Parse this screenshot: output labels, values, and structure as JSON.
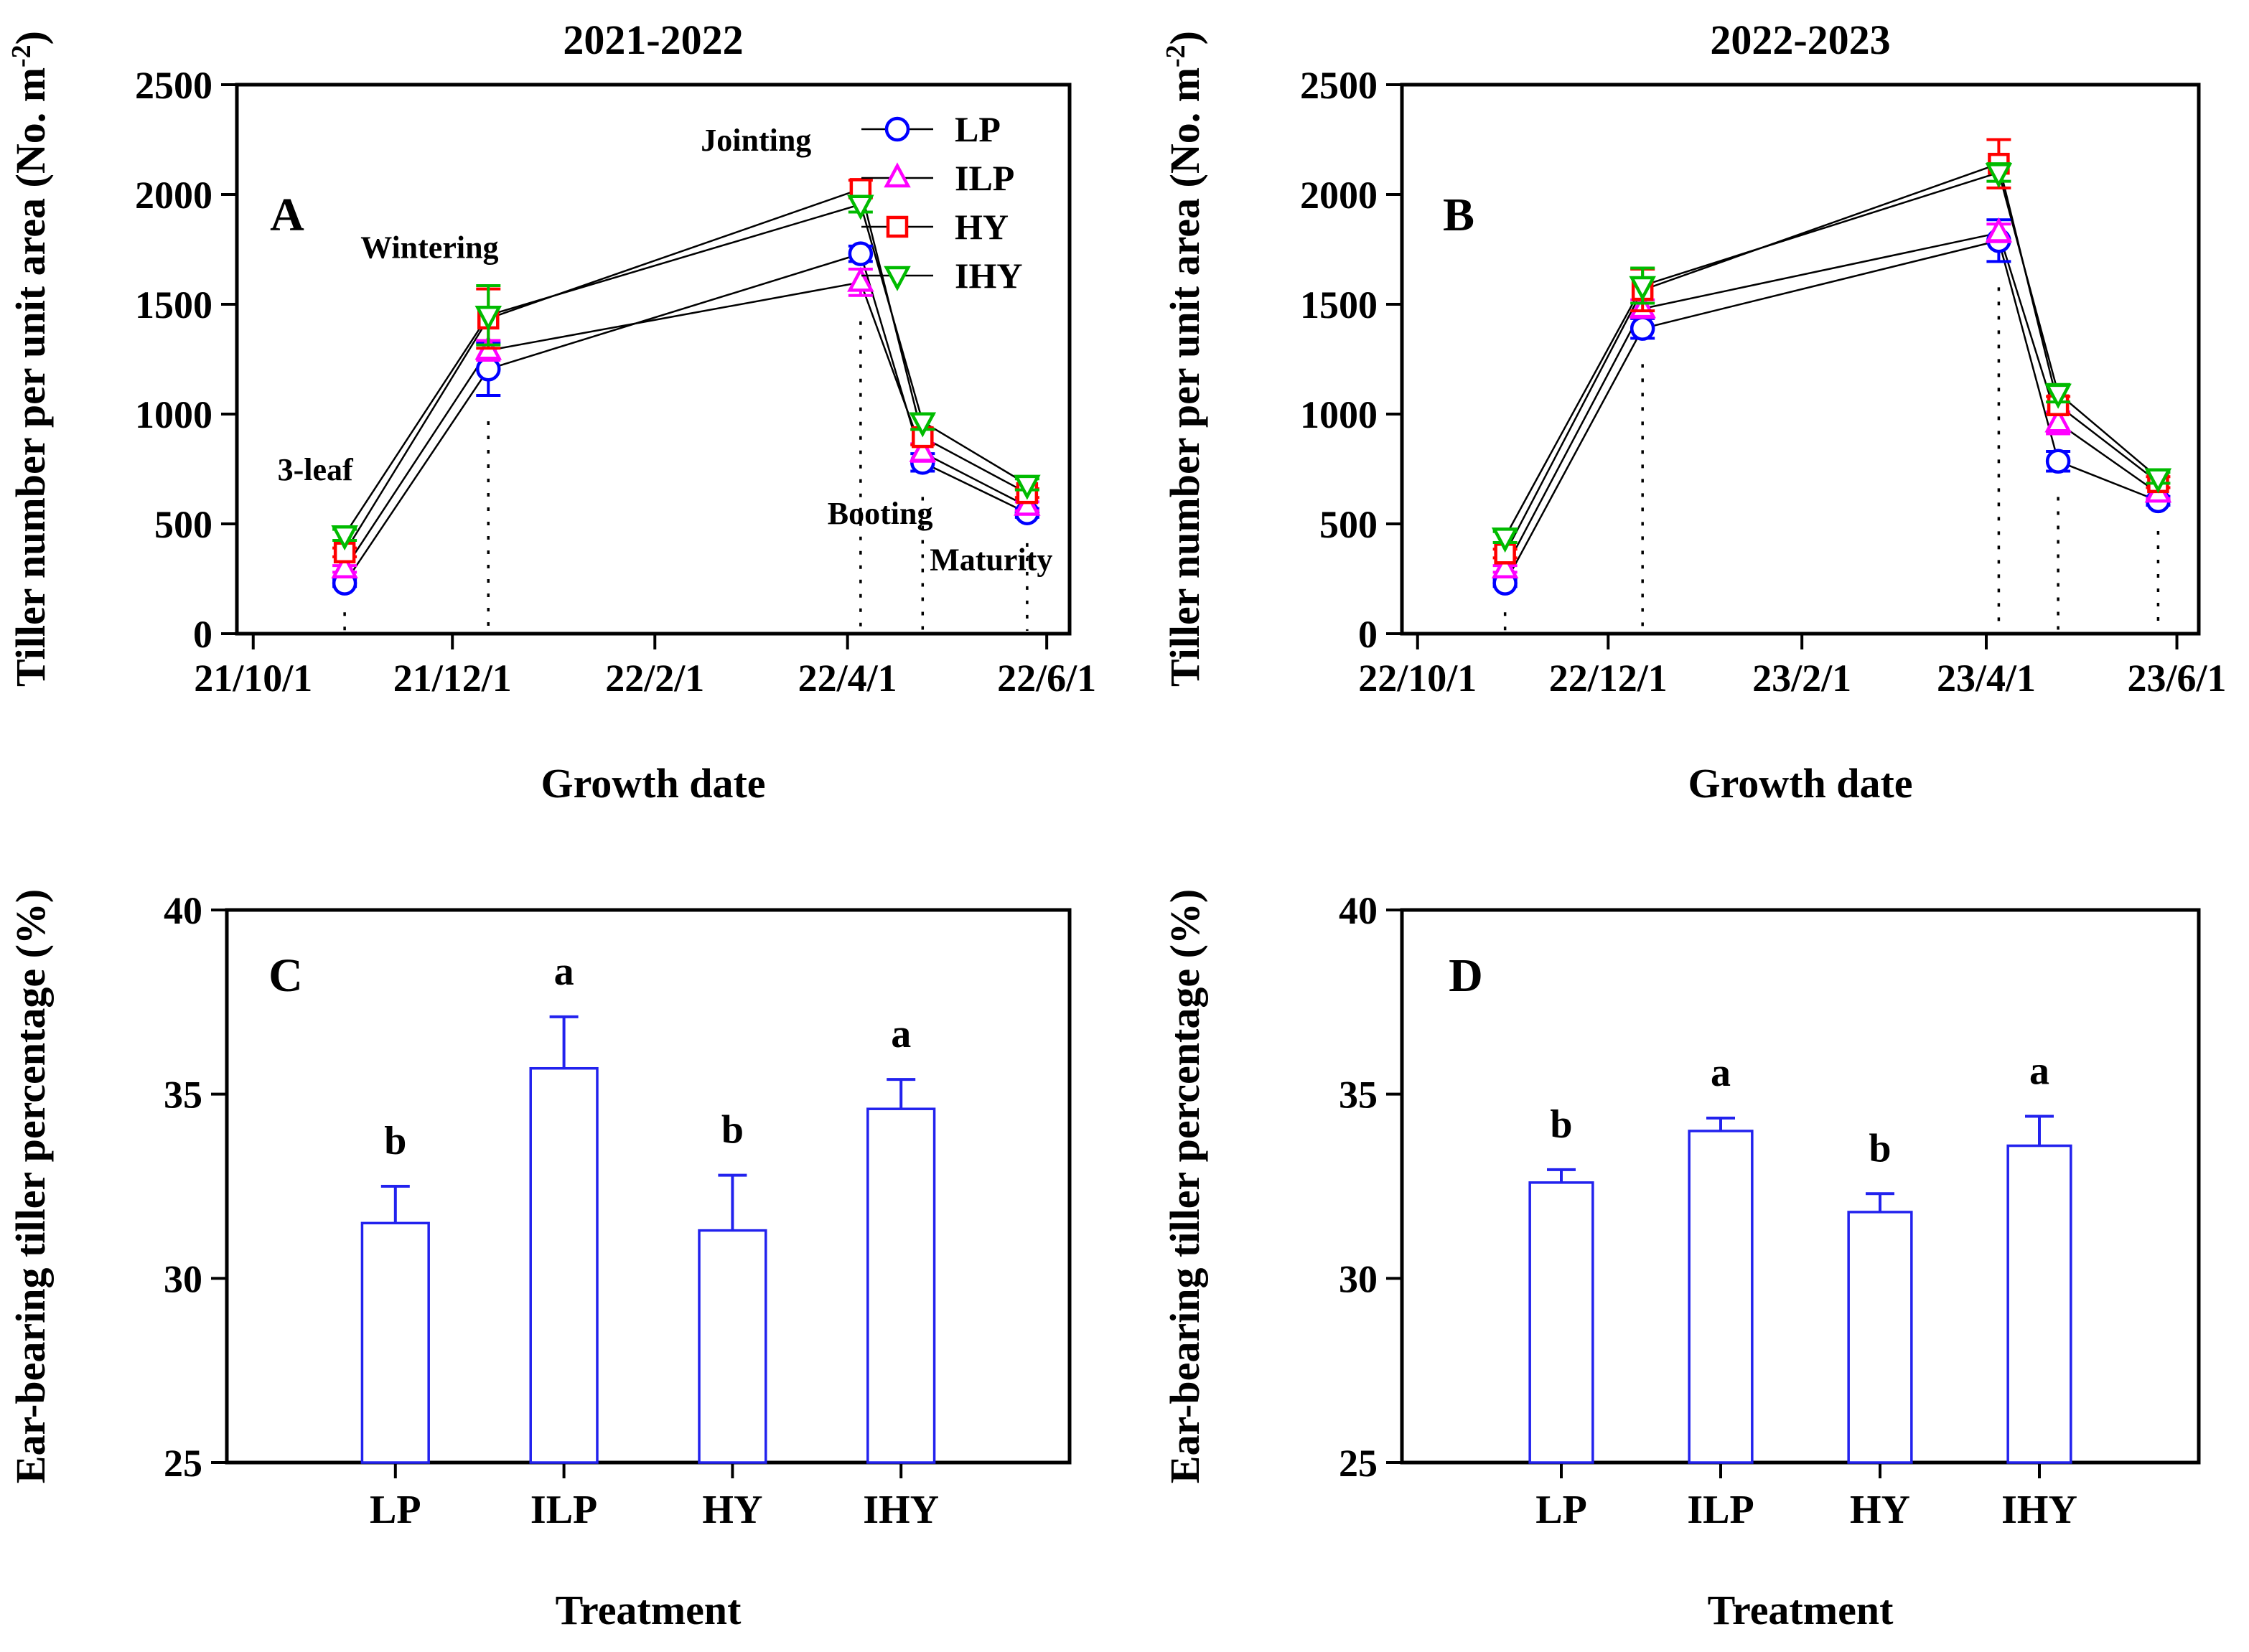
{
  "figure": {
    "background": "#ffffff",
    "text_color": "#000000"
  },
  "chart_data": [
    {
      "id": "A",
      "type": "line",
      "panel_letter": "A",
      "title": "2021-2022",
      "xlabel": "Growth date",
      "ylabel": {
        "text": "Tiller number per unit area (No. m",
        "sup": "-2",
        "suffix": ")"
      },
      "ylim": [
        0,
        2500
      ],
      "yticks": [
        0,
        500,
        1000,
        1500,
        2000,
        2500
      ],
      "xlim": [
        -5,
        250
      ],
      "xticks": [
        {
          "day": 0,
          "label": "21/10/1"
        },
        {
          "day": 61,
          "label": "21/12/1"
        },
        {
          "day": 123,
          "label": "22/2/1"
        },
        {
          "day": 182,
          "label": "22/4/1"
        },
        {
          "day": 243,
          "label": "22/6/1"
        }
      ],
      "x_days": [
        28,
        72,
        186,
        205,
        237
      ],
      "guide_lines": "dotted-vertical-at-each-growth-stage",
      "stages": [
        {
          "label": "3-leaf",
          "day": 19,
          "value": 700
        },
        {
          "label": "Wintering",
          "day": 54,
          "value": 1710
        },
        {
          "label": "Jointing",
          "day": 154,
          "value": 2200
        },
        {
          "label": "Booting",
          "day": 192,
          "value": 500
        },
        {
          "label": "Maturity",
          "day": 226,
          "value": 290
        }
      ],
      "series": [
        {
          "name": "LP",
          "color": "#0000ff",
          "marker": "circle",
          "values": [
            230,
            1205,
            1730,
            780,
            550
          ],
          "errors": [
            15,
            120,
            35,
            40,
            20
          ]
        },
        {
          "name": "ILP",
          "color": "#ff00ff",
          "marker": "triangle-up",
          "values": [
            295,
            1290,
            1600,
            825,
            580
          ],
          "errors": [
            15,
            45,
            60,
            40,
            20
          ]
        },
        {
          "name": "HY",
          "color": "#ff0000",
          "marker": "square",
          "values": [
            370,
            1435,
            2025,
            895,
            640
          ],
          "errors": [
            20,
            135,
            40,
            35,
            20
          ]
        },
        {
          "name": "IHY",
          "color": "#00bb00",
          "marker": "triangle-down",
          "values": [
            450,
            1450,
            1955,
            965,
            680
          ],
          "errors": [
            25,
            135,
            35,
            35,
            25
          ]
        }
      ],
      "legend": {
        "show": true,
        "position": "top-right",
        "items": [
          "LP",
          "ILP",
          "HY",
          "IHY"
        ]
      }
    },
    {
      "id": "B",
      "type": "line",
      "panel_letter": "B",
      "title": "2022-2023",
      "xlabel": "Growth date",
      "ylabel": {
        "text": "Tiller number per unit area (No. m",
        "sup": "-2",
        "suffix": ")"
      },
      "ylim": [
        0,
        2500
      ],
      "yticks": [
        0,
        500,
        1000,
        1500,
        2000,
        2500
      ],
      "xlim": [
        -5,
        250
      ],
      "xticks": [
        {
          "day": 0,
          "label": "22/10/1"
        },
        {
          "day": 61,
          "label": "22/12/1"
        },
        {
          "day": 123,
          "label": "23/2/1"
        },
        {
          "day": 182,
          "label": "23/4/1"
        },
        {
          "day": 243,
          "label": "23/6/1"
        }
      ],
      "x_days": [
        28,
        72,
        186,
        205,
        237
      ],
      "guide_lines": "dotted-vertical-at-each-growth-stage",
      "stages": [],
      "series": [
        {
          "name": "LP",
          "color": "#0000ff",
          "marker": "circle",
          "values": [
            230,
            1390,
            1790,
            785,
            605
          ],
          "errors": [
            15,
            45,
            95,
            45,
            20
          ]
        },
        {
          "name": "ILP",
          "color": "#ff00ff",
          "marker": "triangle-up",
          "values": [
            295,
            1480,
            1825,
            960,
            640
          ],
          "errors": [
            15,
            40,
            40,
            50,
            25
          ]
        },
        {
          "name": "HY",
          "color": "#ff0000",
          "marker": "square",
          "values": [
            365,
            1565,
            2140,
            1040,
            690
          ],
          "errors": [
            20,
            95,
            110,
            40,
            25
          ]
        },
        {
          "name": "IHY",
          "color": "#00bb00",
          "marker": "triangle-down",
          "values": [
            440,
            1585,
            2100,
            1095,
            710
          ],
          "errors": [
            25,
            80,
            40,
            40,
            25
          ]
        }
      ],
      "legend": {
        "show": false,
        "items": []
      }
    },
    {
      "id": "C",
      "type": "bar",
      "panel_letter": "C",
      "title": "",
      "xlabel": "Treatment",
      "ylabel": {
        "text": "Ear-bearing tiller percentage (%)",
        "sup": "",
        "suffix": ""
      },
      "ylim": [
        25,
        40
      ],
      "yticks": [
        25,
        30,
        35,
        40
      ],
      "categories": [
        "LP",
        "ILP",
        "HY",
        "IHY"
      ],
      "values": [
        31.5,
        35.7,
        31.3,
        34.6
      ],
      "errors": [
        1.0,
        1.4,
        1.5,
        0.8
      ],
      "sig_letters": [
        "b",
        "a",
        "b",
        "a"
      ],
      "bar_color": "#2222ee",
      "bar_fill": "#ffffff"
    },
    {
      "id": "D",
      "type": "bar",
      "panel_letter": "D",
      "title": "",
      "xlabel": "Treatment",
      "ylabel": {
        "text": "Ear-bearing tiller percentage (%)",
        "sup": "",
        "suffix": ""
      },
      "ylim": [
        25,
        40
      ],
      "yticks": [
        25,
        30,
        35,
        40
      ],
      "categories": [
        "LP",
        "ILP",
        "HY",
        "IHY"
      ],
      "values": [
        32.6,
        34.0,
        31.8,
        33.6
      ],
      "errors": [
        0.35,
        0.35,
        0.5,
        0.8
      ],
      "sig_letters": [
        "b",
        "a",
        "b",
        "a"
      ],
      "bar_color": "#2222ee",
      "bar_fill": "#ffffff"
    }
  ]
}
